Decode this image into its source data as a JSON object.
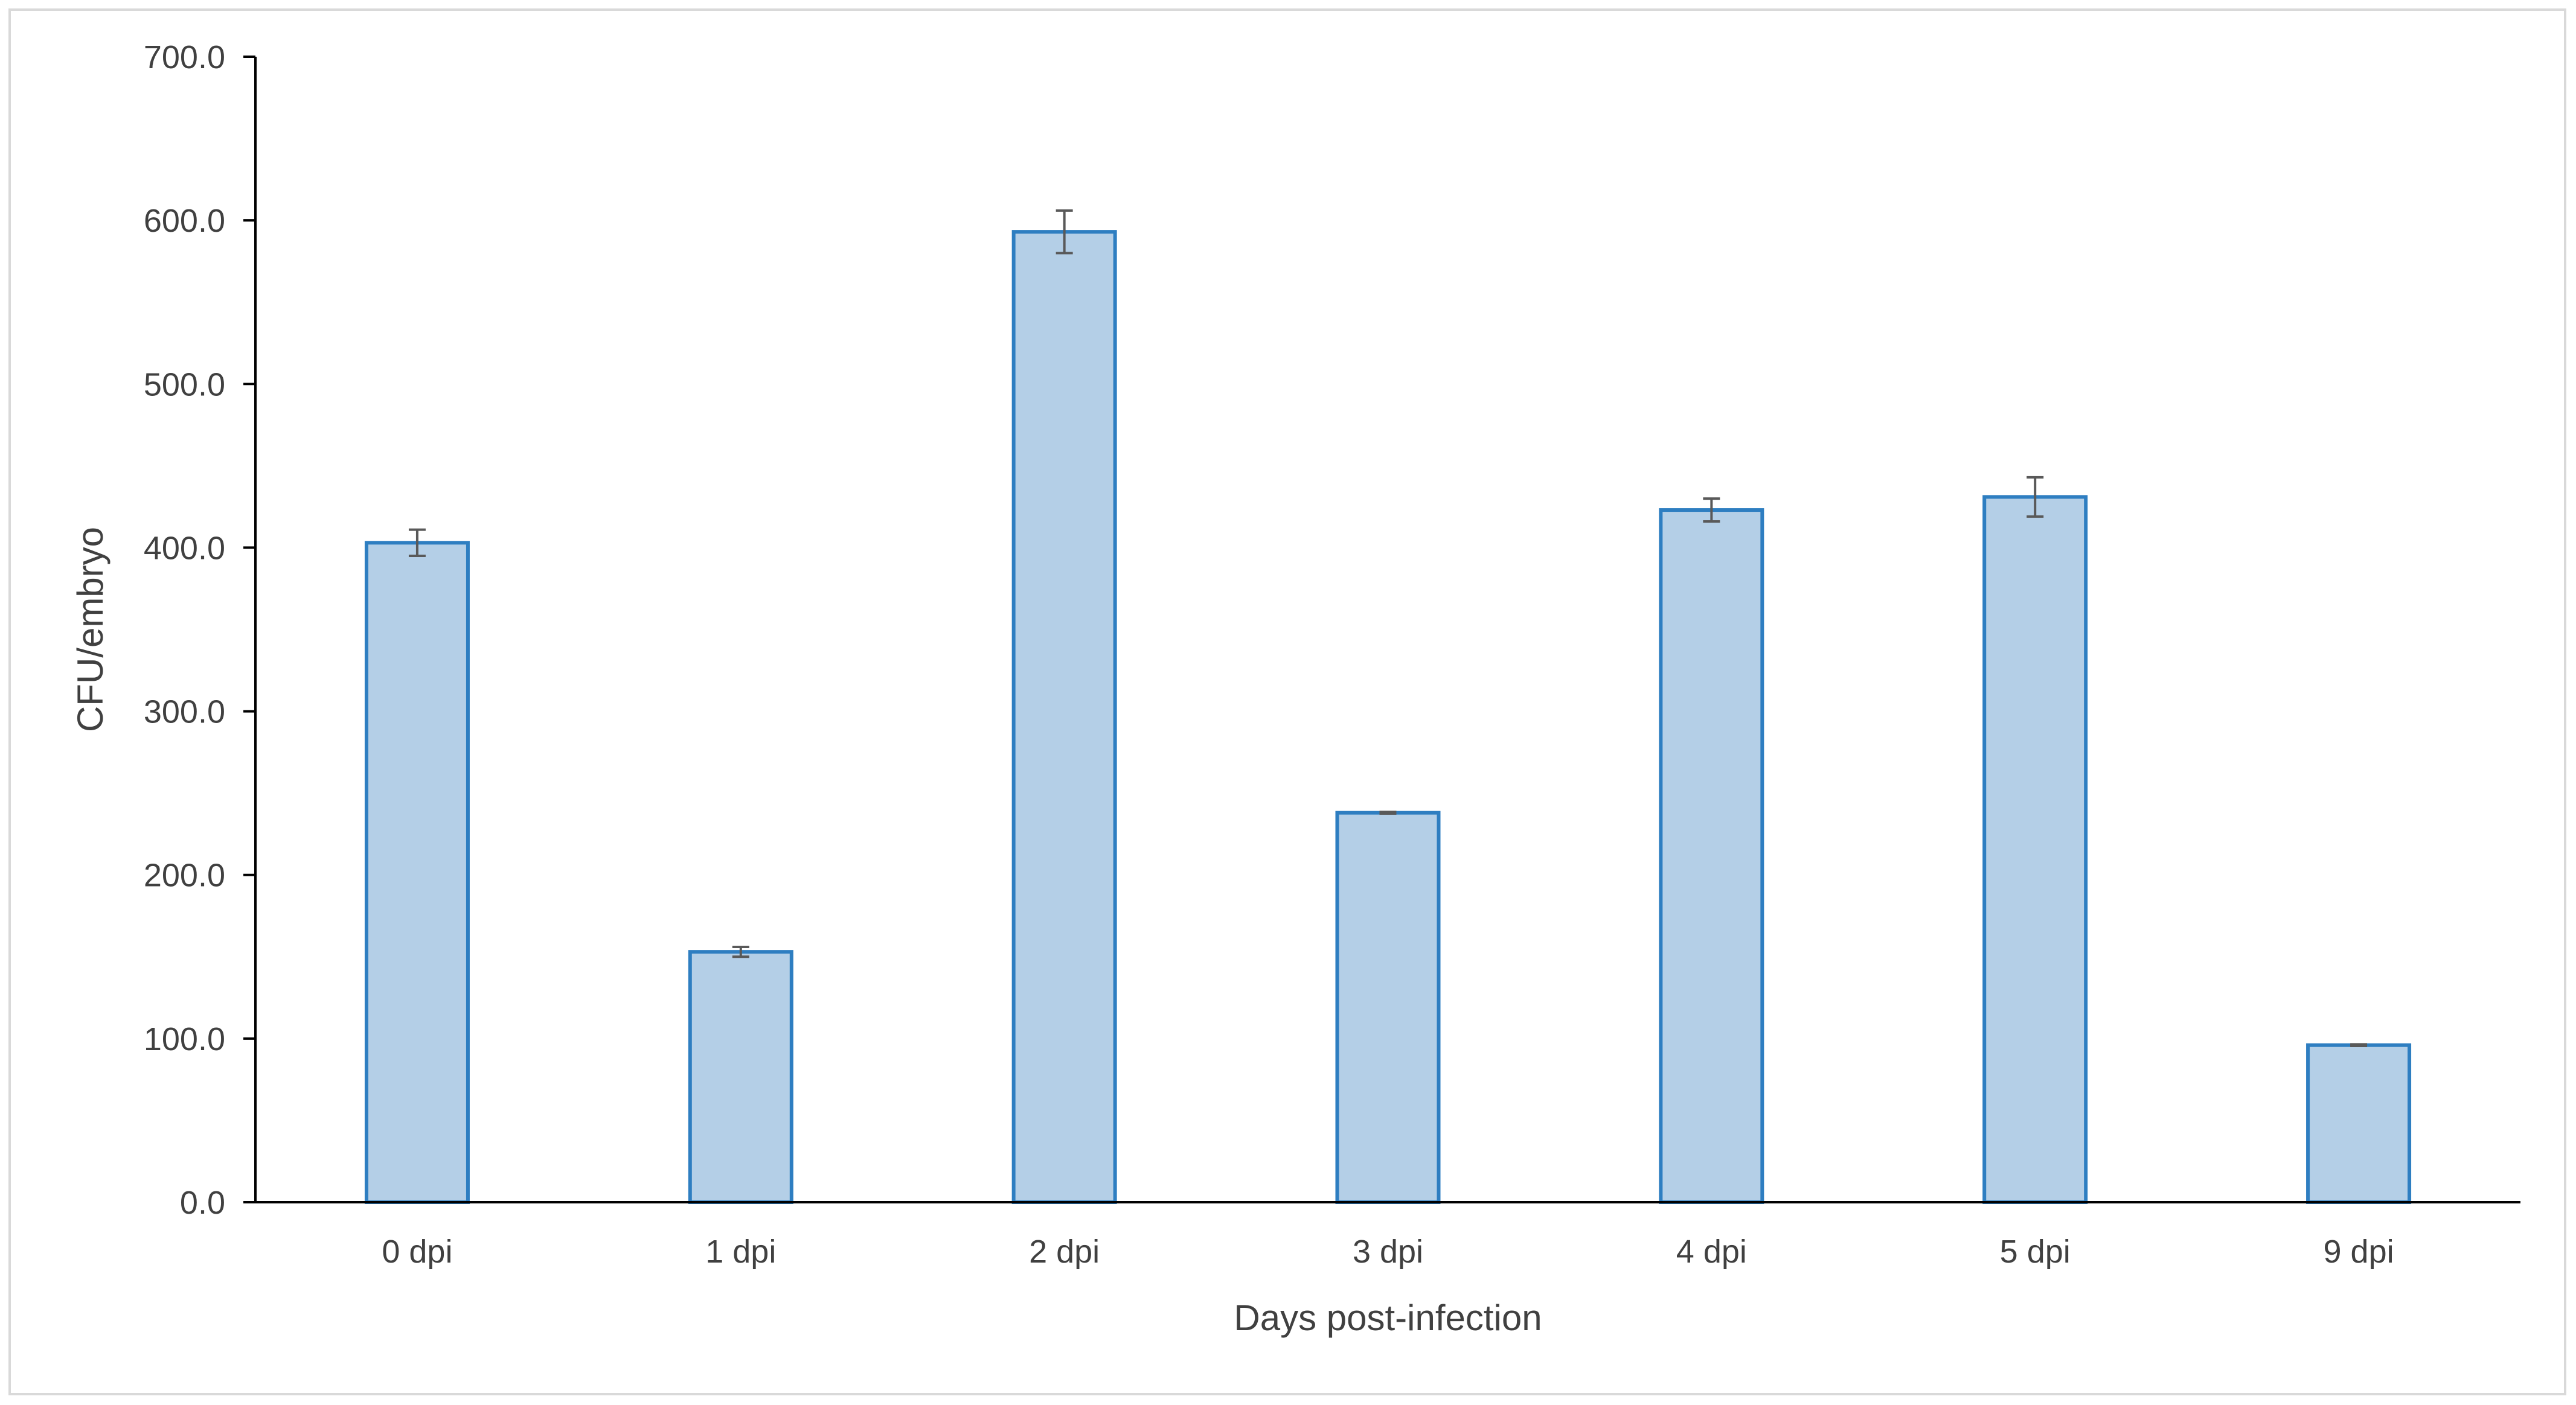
{
  "chart_data": {
    "type": "bar",
    "title": "",
    "xlabel": "Days post-infection",
    "ylabel": "CFU/embryo",
    "categories": [
      "0 dpi",
      "1 dpi",
      "2 dpi",
      "3 dpi",
      "4 dpi",
      "5 dpi",
      "9 dpi"
    ],
    "values": [
      403,
      153,
      593,
      238,
      423,
      431,
      96
    ],
    "error": [
      8,
      3,
      13,
      0.5,
      7,
      12,
      0.5
    ],
    "ylim": [
      0,
      700
    ],
    "yticks": [
      0,
      100,
      200,
      300,
      400,
      500,
      600,
      700
    ],
    "ytick_labels": [
      "0.0",
      "100.0",
      "200.0",
      "300.0",
      "400.0",
      "500.0",
      "600.0",
      "700.0"
    ],
    "grid": false,
    "legend": "none",
    "colors": {
      "bar_fill": "#b4cfe7",
      "bar_stroke": "#2e7ec1",
      "axis": "#000000",
      "error_bar": "#595959",
      "text": "#404040"
    }
  }
}
